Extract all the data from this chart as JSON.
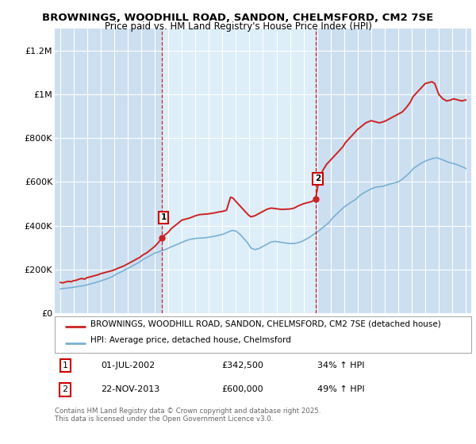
{
  "title": "BROWNINGS, WOODHILL ROAD, SANDON, CHELMSFORD, CM2 7SE",
  "subtitle": "Price paid vs. HM Land Registry's House Price Index (HPI)",
  "background_color": "#ffffff",
  "plot_bg_color": "#ccdff0",
  "plot_bg_between": "#ddeef8",
  "grid_color": "#ffffff",
  "ylim": [
    0,
    1300000
  ],
  "yticks": [
    0,
    200000,
    400000,
    600000,
    800000,
    1000000,
    1200000
  ],
  "ytick_labels": [
    "£0",
    "£200K",
    "£400K",
    "£600K",
    "£800K",
    "£1M",
    "£1.2M"
  ],
  "legend_line1": "BROWNINGS, WOODHILL ROAD, SANDON, CHELMSFORD, CM2 7SE (detached house)",
  "legend_line2": "HPI: Average price, detached house, Chelmsford",
  "annotation1_date": "01-JUL-2002",
  "annotation1_price": "£342,500",
  "annotation1_hpi": "34% ↑ HPI",
  "annotation2_date": "22-NOV-2013",
  "annotation2_price": "£600,000",
  "annotation2_hpi": "49% ↑ HPI",
  "footer": "Contains HM Land Registry data © Crown copyright and database right 2025.\nThis data is licensed under the Open Government Licence v3.0.",
  "red_color": "#cc2222",
  "blue_color": "#7ab0d4",
  "vline_color": "#cc0000",
  "marker1_x": 2002.5,
  "marker2_x": 2013.9,
  "red_x": [
    1995.0,
    1995.2,
    1995.4,
    1995.6,
    1995.8,
    1996.0,
    1996.2,
    1996.4,
    1996.6,
    1996.8,
    1997.0,
    1997.2,
    1997.5,
    1997.8,
    1998.0,
    1998.3,
    1998.6,
    1998.9,
    1999.1,
    1999.4,
    1999.7,
    2000.0,
    2000.3,
    2000.6,
    2000.9,
    2001.1,
    2001.4,
    2001.7,
    2002.0,
    2002.3,
    2002.5,
    2002.7,
    2003.0,
    2003.2,
    2003.5,
    2003.8,
    2004.0,
    2004.3,
    2004.6,
    2004.8,
    2005.0,
    2005.3,
    2005.6,
    2005.9,
    2006.1,
    2006.4,
    2006.7,
    2007.0,
    2007.3,
    2007.6,
    2007.8,
    2008.0,
    2008.3,
    2008.6,
    2008.9,
    2009.1,
    2009.4,
    2009.7,
    2010.0,
    2010.3,
    2010.6,
    2010.9,
    2011.1,
    2011.4,
    2011.7,
    2012.0,
    2012.3,
    2012.6,
    2012.8,
    2013.0,
    2013.3,
    2013.6,
    2013.9,
    2014.1,
    2014.4,
    2014.7,
    2015.0,
    2015.3,
    2015.6,
    2015.9,
    2016.1,
    2016.4,
    2016.7,
    2017.0,
    2017.3,
    2017.6,
    2017.8,
    2018.0,
    2018.3,
    2018.6,
    2018.9,
    2019.1,
    2019.4,
    2019.7,
    2020.0,
    2020.3,
    2020.6,
    2020.9,
    2021.1,
    2021.4,
    2021.7,
    2022.0,
    2022.3,
    2022.5,
    2022.7,
    2023.0,
    2023.3,
    2023.6,
    2023.9,
    2024.1,
    2024.4,
    2024.7,
    2025.0
  ],
  "red_y": [
    140000,
    138000,
    142000,
    145000,
    143000,
    148000,
    150000,
    155000,
    158000,
    155000,
    162000,
    165000,
    170000,
    175000,
    180000,
    185000,
    190000,
    195000,
    200000,
    208000,
    215000,
    225000,
    235000,
    245000,
    255000,
    265000,
    275000,
    290000,
    305000,
    325000,
    342500,
    355000,
    370000,
    385000,
    400000,
    415000,
    425000,
    430000,
    435000,
    440000,
    445000,
    450000,
    452000,
    453000,
    455000,
    458000,
    462000,
    465000,
    470000,
    530000,
    525000,
    510000,
    490000,
    470000,
    450000,
    440000,
    445000,
    455000,
    465000,
    475000,
    480000,
    478000,
    476000,
    474000,
    475000,
    476000,
    480000,
    490000,
    495000,
    500000,
    505000,
    510000,
    520000,
    600000,
    650000,
    680000,
    700000,
    720000,
    740000,
    760000,
    780000,
    800000,
    820000,
    840000,
    855000,
    870000,
    875000,
    880000,
    875000,
    870000,
    875000,
    880000,
    890000,
    900000,
    910000,
    920000,
    940000,
    965000,
    990000,
    1010000,
    1030000,
    1050000,
    1055000,
    1058000,
    1050000,
    1000000,
    980000,
    970000,
    975000,
    980000,
    975000,
    970000,
    975000
  ],
  "blue_x": [
    1995.0,
    1995.2,
    1995.5,
    1995.8,
    1996.0,
    1996.3,
    1996.6,
    1996.9,
    1997.1,
    1997.4,
    1997.7,
    1998.0,
    1998.3,
    1998.6,
    1998.9,
    1999.1,
    1999.4,
    1999.7,
    2000.0,
    2000.3,
    2000.6,
    2000.9,
    2001.1,
    2001.4,
    2001.7,
    2002.0,
    2002.3,
    2002.6,
    2002.9,
    2003.1,
    2003.4,
    2003.7,
    2004.0,
    2004.3,
    2004.6,
    2004.9,
    2005.1,
    2005.4,
    2005.7,
    2006.0,
    2006.3,
    2006.6,
    2006.9,
    2007.1,
    2007.4,
    2007.7,
    2008.0,
    2008.3,
    2008.6,
    2008.9,
    2009.1,
    2009.4,
    2009.7,
    2010.0,
    2010.3,
    2010.6,
    2010.9,
    2011.1,
    2011.4,
    2011.7,
    2012.0,
    2012.3,
    2012.6,
    2012.9,
    2013.1,
    2013.4,
    2013.7,
    2014.0,
    2014.3,
    2014.6,
    2014.9,
    2015.1,
    2015.4,
    2015.7,
    2016.0,
    2016.3,
    2016.6,
    2016.9,
    2017.1,
    2017.4,
    2017.7,
    2018.0,
    2018.3,
    2018.6,
    2018.9,
    2019.1,
    2019.4,
    2019.7,
    2020.0,
    2020.3,
    2020.6,
    2020.9,
    2021.1,
    2021.4,
    2021.7,
    2022.0,
    2022.3,
    2022.6,
    2022.9,
    2023.1,
    2023.4,
    2023.7,
    2024.0,
    2024.3,
    2024.6,
    2024.9,
    2025.0
  ],
  "blue_y": [
    110000,
    112000,
    114000,
    116000,
    118000,
    121000,
    124000,
    127000,
    131000,
    136000,
    141000,
    147000,
    153000,
    160000,
    168000,
    176000,
    185000,
    194000,
    204000,
    214000,
    224000,
    234000,
    244000,
    254000,
    264000,
    274000,
    280000,
    287000,
    293000,
    300000,
    307000,
    315000,
    323000,
    331000,
    337000,
    340000,
    342000,
    343000,
    344000,
    347000,
    350000,
    354000,
    358000,
    362000,
    370000,
    378000,
    375000,
    360000,
    340000,
    318000,
    298000,
    290000,
    295000,
    305000,
    315000,
    325000,
    328000,
    326000,
    323000,
    320000,
    318000,
    318000,
    322000,
    328000,
    335000,
    345000,
    358000,
    370000,
    385000,
    400000,
    415000,
    432000,
    450000,
    468000,
    485000,
    498000,
    510000,
    522000,
    535000,
    548000,
    558000,
    568000,
    575000,
    578000,
    580000,
    585000,
    590000,
    595000,
    600000,
    612000,
    628000,
    645000,
    660000,
    673000,
    685000,
    695000,
    702000,
    708000,
    710000,
    705000,
    698000,
    690000,
    685000,
    680000,
    672000,
    665000,
    660000
  ]
}
